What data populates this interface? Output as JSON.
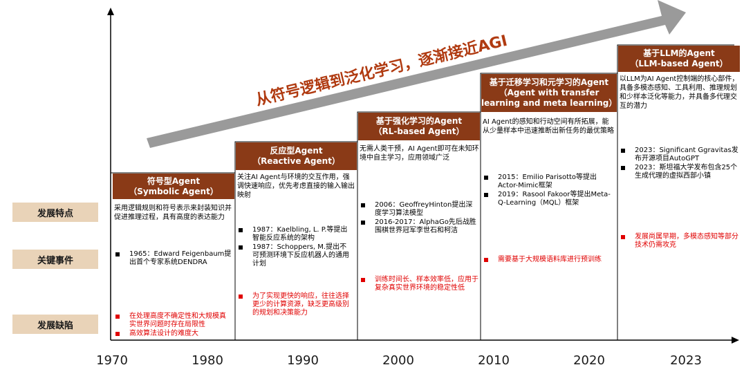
{
  "banner": "从符号逻辑到泛化学习，逐渐接近AGI",
  "rows": [
    "发展特点",
    "关键事件",
    "发展缺陷"
  ],
  "years": [
    "1970",
    "1980",
    "1990",
    "2000",
    "2010",
    "2020",
    "2023"
  ],
  "eras": [
    {
      "title": "符号型Agent",
      "subtitle": "（Symbolic Agent）",
      "desc": "采用逻辑规则和符号表示来封装知识并促进推理过程，具有高度的表达能力",
      "events": [
        "1965：Edward Feigenbaum提出首个专家系统DENDRA"
      ],
      "defects": [
        "在处理高度不确定性和大规模真实世界问题时存在局限性",
        "高效算法设计的难度大"
      ]
    },
    {
      "title": "反应型Agent",
      "subtitle": "（Reactive Agent）",
      "desc": "关注AI  Agent与环境的交互作用，强调快速响应，优先考虑直接的输入输出映射",
      "events": [
        "1987：Kaelbling, L. P.等提出智能反应系统的架构",
        "1987：Schoppers, M.提出不可预测环境下反应机器人的通用计划"
      ],
      "defects": [
        "为了实现更快的响应，往往选择更少的计算资源，缺乏更高级别的规划和决策能力"
      ]
    },
    {
      "title": "基于强化学习的Agent",
      "subtitle": "（RL-based Agent）",
      "desc": "无需人类干预，AI Agent即可在未知环境中自主学习，应用领域广泛",
      "events": [
        "2006：GeoffreyHinton提出深度学习算法模型",
        "2016-2017：AlphaGo先后战胜围棋世界冠军李世石和柯洁"
      ],
      "defects": [
        "训练时间长、样本效率低，应用于复杂真实世界环境的稳定性低"
      ]
    },
    {
      "title": "基于迁移学习和元学习的Agent",
      "subtitle": "（Agent with transfer learning and meta learning）",
      "desc": "AI Agent的感知和行动空间有所拓展，能从少量样本中迅速推断出新任务的最优策略",
      "events": [
        "2015：Emilio Parisotto等提出Actor-Mimic框架",
        "2019：Rasool Fakoor等提出Meta-Q-Learning（MQL）框架"
      ],
      "defects": [
        "需要基于大规模语料库进行预训练"
      ]
    },
    {
      "title": "基于LLM的Agent",
      "subtitle": "（LLM-based Agent）",
      "desc": "以LLM为AI Agent控制端的核心部件，具备多模态感知、工具利用、推理规划和少样本泛化等能力，并具备多代理交互的潜力",
      "events": [
        "2023：Significant Ggravitas发布开源项目AutoGPT",
        "2023：斯坦福大学发布包含25个生成代理的虚拟西部小镇"
      ],
      "defects": [
        "发展尚属早期，多模态感知等部分技术仍需攻克"
      ]
    }
  ],
  "colors": {
    "header": "#8a3a17",
    "rowlabel": "#e9d3b8",
    "arrow": "#9a9a9a",
    "banner": "#b03a10",
    "defect": "#e00000"
  }
}
